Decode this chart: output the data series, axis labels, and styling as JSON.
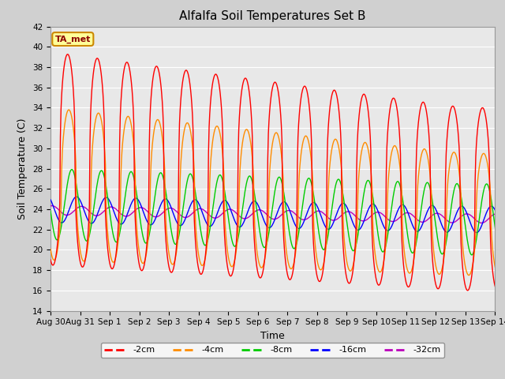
{
  "title": "Alfalfa Soil Temperatures Set B",
  "xlabel": "Time",
  "ylabel": "Soil Temperature (C)",
  "ylim": [
    14,
    42
  ],
  "yticks": [
    14,
    16,
    18,
    20,
    22,
    24,
    26,
    28,
    30,
    32,
    34,
    36,
    38,
    40,
    42
  ],
  "xtick_labels": [
    "Aug 30",
    "Aug 31",
    "Sep 1",
    "Sep 2",
    "Sep 3",
    "Sep 4",
    "Sep 5",
    "Sep 6",
    "Sep 7",
    "Sep 8",
    "Sep 9",
    "Sep 10",
    "Sep 11",
    "Sep 12",
    "Sep 13",
    "Sep 14"
  ],
  "series": {
    "-2cm": {
      "color": "#FF0000",
      "linewidth": 1.0
    },
    "-4cm": {
      "color": "#FF8C00",
      "linewidth": 1.0
    },
    "-8cm": {
      "color": "#00CC00",
      "linewidth": 1.0
    },
    "-16cm": {
      "color": "#0000FF",
      "linewidth": 1.0
    },
    "-32cm": {
      "color": "#BB00BB",
      "linewidth": 1.0
    }
  },
  "legend_label": "TA_met",
  "legend_bg": "#FFFF99",
  "legend_border": "#CC8800",
  "plot_bg": "#E8E8E8",
  "fig_bg": "#D0D0D0",
  "title_fontsize": 11,
  "axis_label_fontsize": 9,
  "tick_fontsize": 7.5
}
